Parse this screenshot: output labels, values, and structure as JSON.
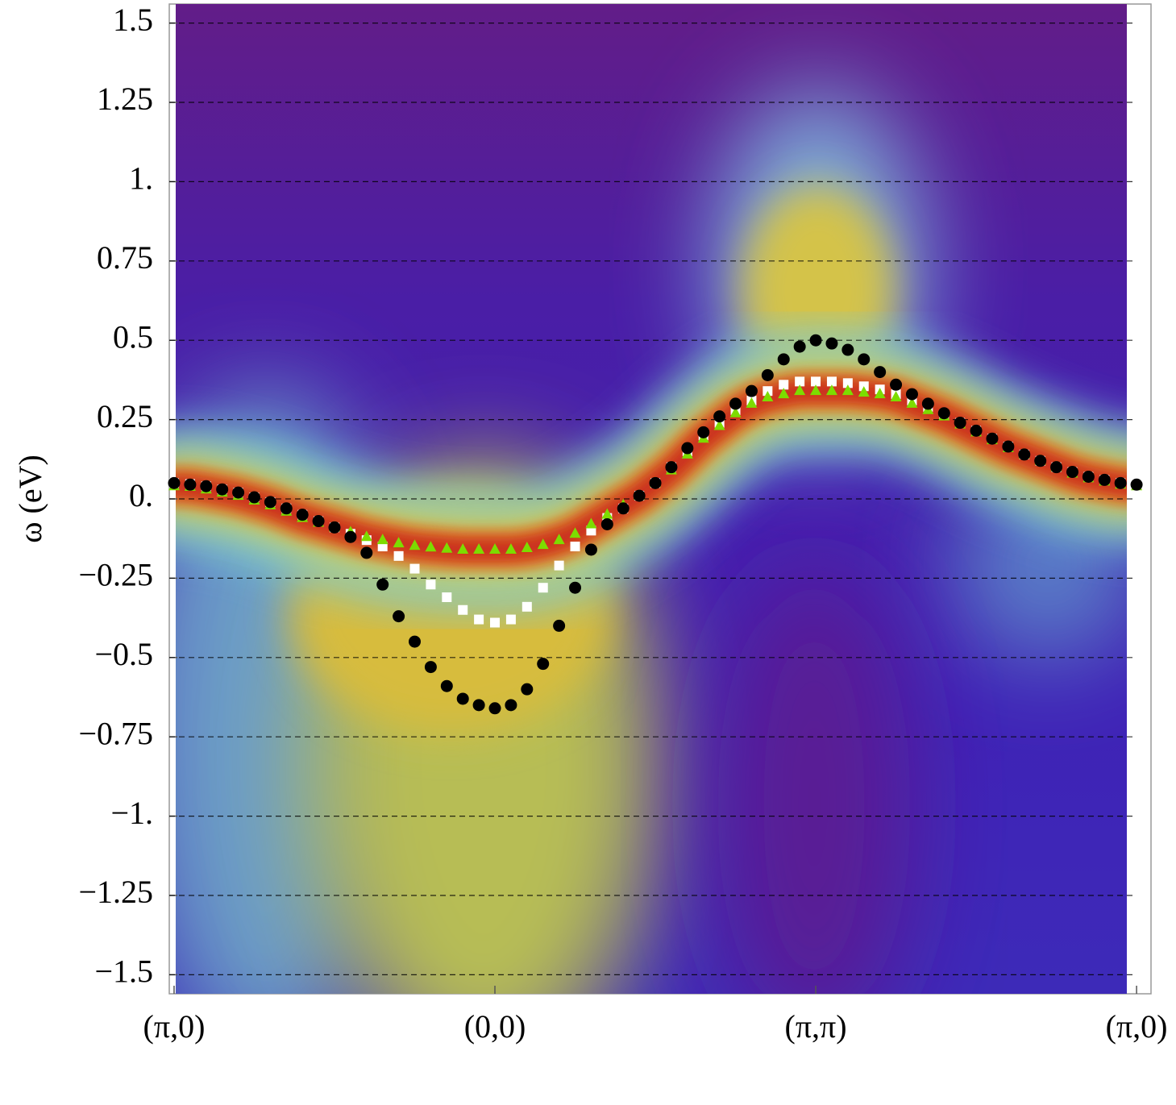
{
  "chart_data": {
    "type": "scatter",
    "ylabel": "ω (eV)",
    "x": [
      0,
      0.05,
      0.1,
      0.15,
      0.2,
      0.25,
      0.3,
      0.35,
      0.4,
      0.45,
      0.5,
      0.55,
      0.6,
      0.65,
      0.7,
      0.75,
      0.8,
      0.85,
      0.9,
      0.95,
      1,
      1.05,
      1.1,
      1.15,
      1.2,
      1.25,
      1.3,
      1.35,
      1.4,
      1.45,
      1.5,
      1.55,
      1.6,
      1.65,
      1.7,
      1.75,
      1.8,
      1.85,
      1.9,
      1.95,
      2,
      2.05,
      2.1,
      2.15,
      2.2,
      2.25,
      2.3,
      2.35,
      2.4,
      2.45,
      2.5,
      2.55,
      2.6,
      2.65,
      2.7,
      2.75,
      2.8,
      2.85,
      2.9,
      2.95,
      3
    ],
    "series": [
      {
        "color": "#ffffff",
        "marker": "square",
        "values": [
          0.05,
          0.047,
          0.04,
          0.03,
          0.02,
          0.005,
          -0.01,
          -0.03,
          -0.05,
          -0.07,
          -0.09,
          -0.11,
          -0.13,
          -0.15,
          -0.18,
          -0.22,
          -0.27,
          -0.31,
          -0.35,
          -0.38,
          -0.39,
          -0.38,
          -0.34,
          -0.28,
          -0.21,
          -0.15,
          -0.1,
          -0.06,
          -0.03,
          0.01,
          0.05,
          0.1,
          0.15,
          0.2,
          0.24,
          0.28,
          0.31,
          0.34,
          0.36,
          0.37,
          0.37,
          0.37,
          0.365,
          0.355,
          0.345,
          0.33,
          0.31,
          0.29,
          0.265,
          0.24,
          0.215,
          0.19,
          0.165,
          0.14,
          0.12,
          0.1,
          0.085,
          0.07,
          0.06,
          0.05,
          0.045
        ]
      },
      {
        "color": "#7ddc00",
        "marker": "triangle",
        "values": [
          0.04,
          0.038,
          0.03,
          0.02,
          0.01,
          -0.005,
          -0.02,
          -0.04,
          -0.06,
          -0.075,
          -0.09,
          -0.105,
          -0.12,
          -0.13,
          -0.14,
          -0.148,
          -0.153,
          -0.157,
          -0.16,
          -0.16,
          -0.16,
          -0.16,
          -0.155,
          -0.145,
          -0.13,
          -0.11,
          -0.08,
          -0.05,
          -0.02,
          0.01,
          0.05,
          0.09,
          0.14,
          0.19,
          0.23,
          0.27,
          0.3,
          0.32,
          0.33,
          0.34,
          0.34,
          0.34,
          0.34,
          0.335,
          0.33,
          0.32,
          0.3,
          0.28,
          0.26,
          0.235,
          0.21,
          0.185,
          0.16,
          0.14,
          0.12,
          0.1,
          0.08,
          0.065,
          0.055,
          0.045,
          0.04
        ]
      },
      {
        "color": "#000000",
        "marker": "circle",
        "values": [
          0.05,
          0.045,
          0.04,
          0.03,
          0.02,
          0.005,
          -0.01,
          -0.03,
          -0.05,
          -0.07,
          -0.09,
          -0.12,
          -0.17,
          -0.27,
          -0.37,
          -0.45,
          -0.53,
          -0.59,
          -0.63,
          -0.65,
          -0.66,
          -0.65,
          -0.6,
          -0.52,
          -0.4,
          -0.28,
          -0.16,
          -0.08,
          -0.03,
          0.01,
          0.05,
          0.1,
          0.16,
          0.21,
          0.26,
          0.3,
          0.34,
          0.39,
          0.44,
          0.48,
          0.5,
          0.49,
          0.47,
          0.44,
          0.4,
          0.36,
          0.33,
          0.3,
          0.27,
          0.24,
          0.215,
          0.19,
          0.165,
          0.14,
          0.12,
          0.1,
          0.085,
          0.07,
          0.06,
          0.05,
          0.045
        ]
      }
    ],
    "xlim": [
      -0.015,
      3.045
    ],
    "xticks": [
      {
        "value": 0,
        "label": "(π,0)"
      },
      {
        "value": 1,
        "label": "(0,0)"
      },
      {
        "value": 2,
        "label": "(π,π)"
      },
      {
        "value": 3,
        "label": "(π,0)"
      }
    ],
    "ylim": [
      -1.56,
      1.56
    ],
    "yticks": [
      {
        "value": -1.5,
        "label": "−1.5"
      },
      {
        "value": -1.25,
        "label": "−1.25"
      },
      {
        "value": -1,
        "label": "−1."
      },
      {
        "value": -0.75,
        "label": "−0.75"
      },
      {
        "value": -0.5,
        "label": "−0.5"
      },
      {
        "value": -0.25,
        "label": "−0.25"
      },
      {
        "value": 0,
        "label": "0."
      },
      0.25,
      0.5,
      0.75,
      {
        "value": 1,
        "label": "1."
      },
      1.25,
      1.5
    ],
    "grid": true
  }
}
